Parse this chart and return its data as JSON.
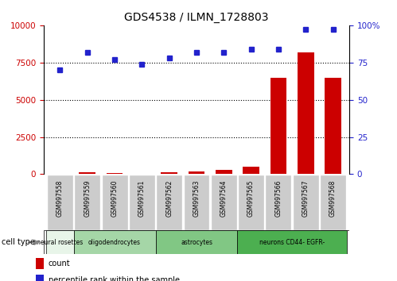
{
  "title": "GDS4538 / ILMN_1728803",
  "samples": [
    "GSM997558",
    "GSM997559",
    "GSM997560",
    "GSM997561",
    "GSM997562",
    "GSM997563",
    "GSM997564",
    "GSM997565",
    "GSM997566",
    "GSM997567",
    "GSM997568"
  ],
  "counts": [
    30,
    120,
    80,
    50,
    140,
    160,
    280,
    500,
    6500,
    8200,
    6500
  ],
  "percentile_ranks": [
    70,
    82,
    77,
    74,
    78,
    82,
    82,
    84,
    84,
    97,
    97
  ],
  "cell_types": [
    {
      "label": "neural rosettes",
      "start": 0,
      "end": 0,
      "color": "#e8f5e9"
    },
    {
      "label": "oligodendrocytes",
      "start": 1,
      "end": 3,
      "color": "#a5d6a7"
    },
    {
      "label": "astrocytes",
      "start": 4,
      "end": 6,
      "color": "#81c784"
    },
    {
      "label": "neurons CD44- EGFR-",
      "start": 7,
      "end": 10,
      "color": "#4caf50"
    }
  ],
  "ylim_left": [
    0,
    10000
  ],
  "ylim_right": [
    0,
    100
  ],
  "yticks_left": [
    0,
    2500,
    5000,
    7500,
    10000
  ],
  "yticks_right": [
    0,
    25,
    50,
    75,
    100
  ],
  "bar_color": "#cc0000",
  "dot_color": "#2222cc",
  "label_bg_color": "#cccccc",
  "cell_type_label": "cell type"
}
